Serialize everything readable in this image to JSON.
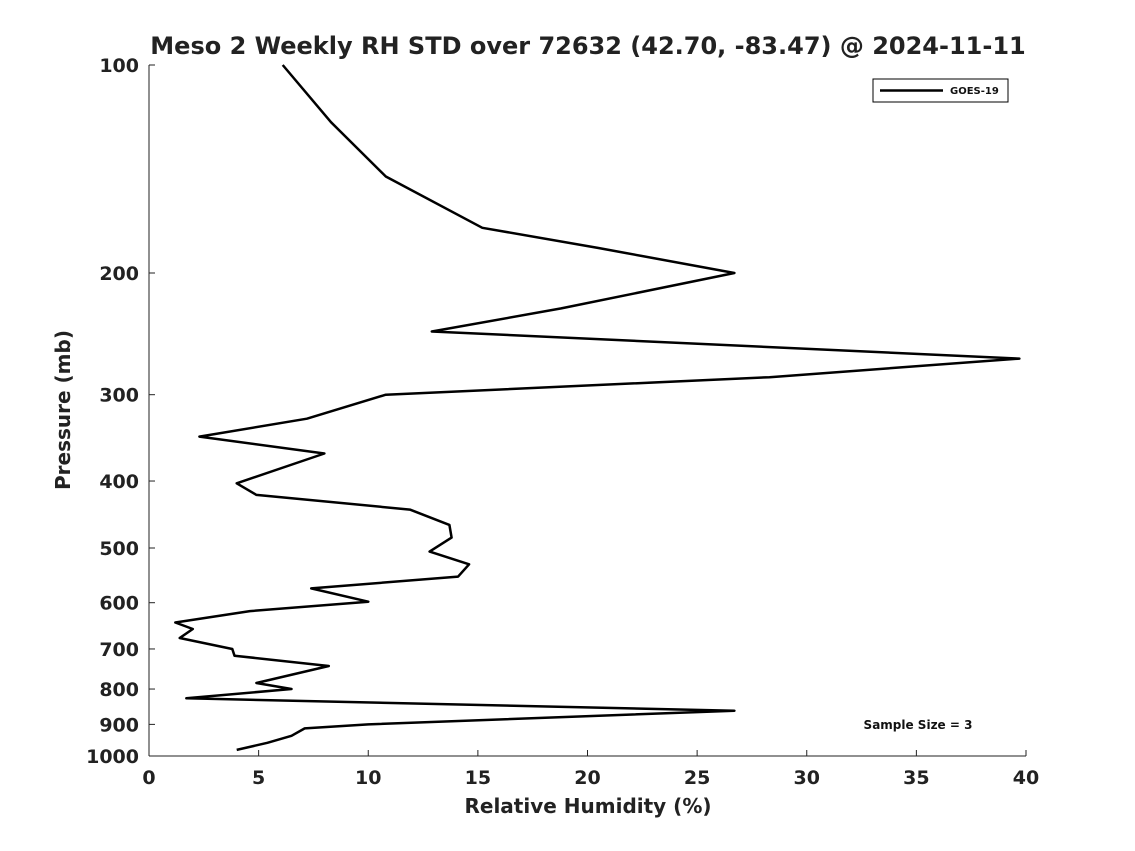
{
  "chart_data": {
    "type": "line",
    "title": "Meso 2 Weekly RH STD over 72632 (42.70, -83.47) @ 2024-11-11",
    "xlabel": "Relative Humidity (%)",
    "ylabel": "Pressure (mb)",
    "xlim": [
      0,
      40
    ],
    "ylim": [
      1000,
      100
    ],
    "yscale": "log",
    "x_ticks": [
      0,
      5,
      10,
      15,
      20,
      25,
      30,
      35,
      40
    ],
    "y_ticks": [
      100,
      200,
      300,
      400,
      500,
      600,
      700,
      800,
      900,
      1000
    ],
    "grid": false,
    "legend_position": "top-right",
    "annotation": "Sample Size = 3",
    "series": [
      {
        "name": "GOES-19",
        "color": "#000000",
        "x": [
          6.1,
          8.3,
          10.8,
          15.2,
          20.5,
          26.7,
          18.8,
          12.9,
          39.7,
          28.3,
          10.8,
          7.2,
          2.3,
          8.0,
          4.0,
          4.9,
          11.9,
          13.7,
          13.8,
          12.8,
          14.6,
          14.1,
          7.4,
          10.0,
          4.6,
          1.2,
          2.0,
          1.4,
          3.8,
          3.9,
          8.2,
          4.9,
          6.5,
          1.7,
          26.7,
          10.0,
          7.1,
          6.5,
          5.4,
          4.0
        ],
        "y": [
          100,
          121,
          145,
          172,
          184,
          200,
          225,
          243,
          266,
          283,
          300,
          325,
          345,
          365,
          403,
          419,
          440,
          463,
          483,
          506,
          528,
          550,
          572,
          598,
          617,
          641,
          655,
          675,
          700,
          716,
          741,
          784,
          800,
          825,
          860,
          900,
          912,
          935,
          957,
          980
        ]
      }
    ]
  }
}
